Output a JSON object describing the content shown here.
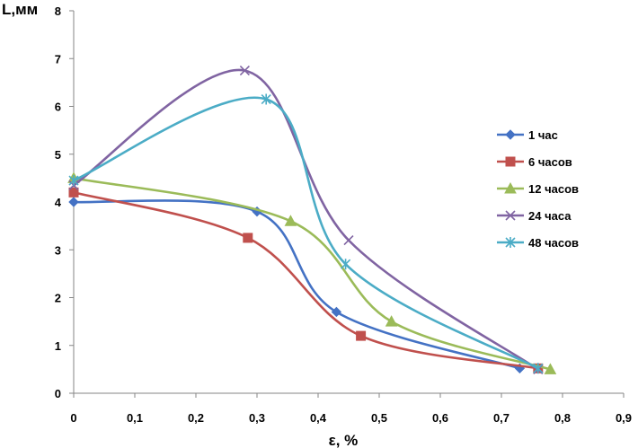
{
  "chart_data": {
    "type": "line",
    "title": "",
    "xlabel": "ε, %",
    "ylabel": "L,мм",
    "xlim": [
      0,
      0.9
    ],
    "ylim": [
      0,
      8
    ],
    "x_ticks": [
      "0",
      "0,1",
      "0,2",
      "0,3",
      "0,4",
      "0,5",
      "0,6",
      "0,7",
      "0,8",
      "0,9"
    ],
    "y_ticks": [
      "0",
      "1",
      "2",
      "3",
      "4",
      "5",
      "6",
      "7",
      "8"
    ],
    "grid": false,
    "legend_position": "right",
    "series": [
      {
        "name": "1 час",
        "color": "#4472C4",
        "marker": "diamond",
        "points": [
          [
            0,
            4.0
          ],
          [
            0.3,
            3.8
          ],
          [
            0.43,
            1.7
          ],
          [
            0.73,
            0.52
          ]
        ]
      },
      {
        "name": "6 часов",
        "color": "#C0504D",
        "marker": "square",
        "points": [
          [
            0,
            4.2
          ],
          [
            0.285,
            3.25
          ],
          [
            0.47,
            1.2
          ],
          [
            0.76,
            0.52
          ]
        ]
      },
      {
        "name": "12 часов",
        "color": "#9BBB59",
        "marker": "triangle",
        "points": [
          [
            0,
            4.5
          ],
          [
            0.355,
            3.6
          ],
          [
            0.52,
            1.5
          ],
          [
            0.78,
            0.5
          ]
        ]
      },
      {
        "name": "24 часа",
        "color": "#8064A2",
        "marker": "x",
        "points": [
          [
            0,
            4.35
          ],
          [
            0.28,
            6.75
          ],
          [
            0.45,
            3.2
          ],
          [
            0.76,
            0.5
          ]
        ]
      },
      {
        "name": "48 часов",
        "color": "#4BACC6",
        "marker": "star",
        "points": [
          [
            0,
            4.45
          ],
          [
            0.315,
            6.15
          ],
          [
            0.445,
            2.7
          ],
          [
            0.76,
            0.52
          ]
        ]
      }
    ]
  }
}
